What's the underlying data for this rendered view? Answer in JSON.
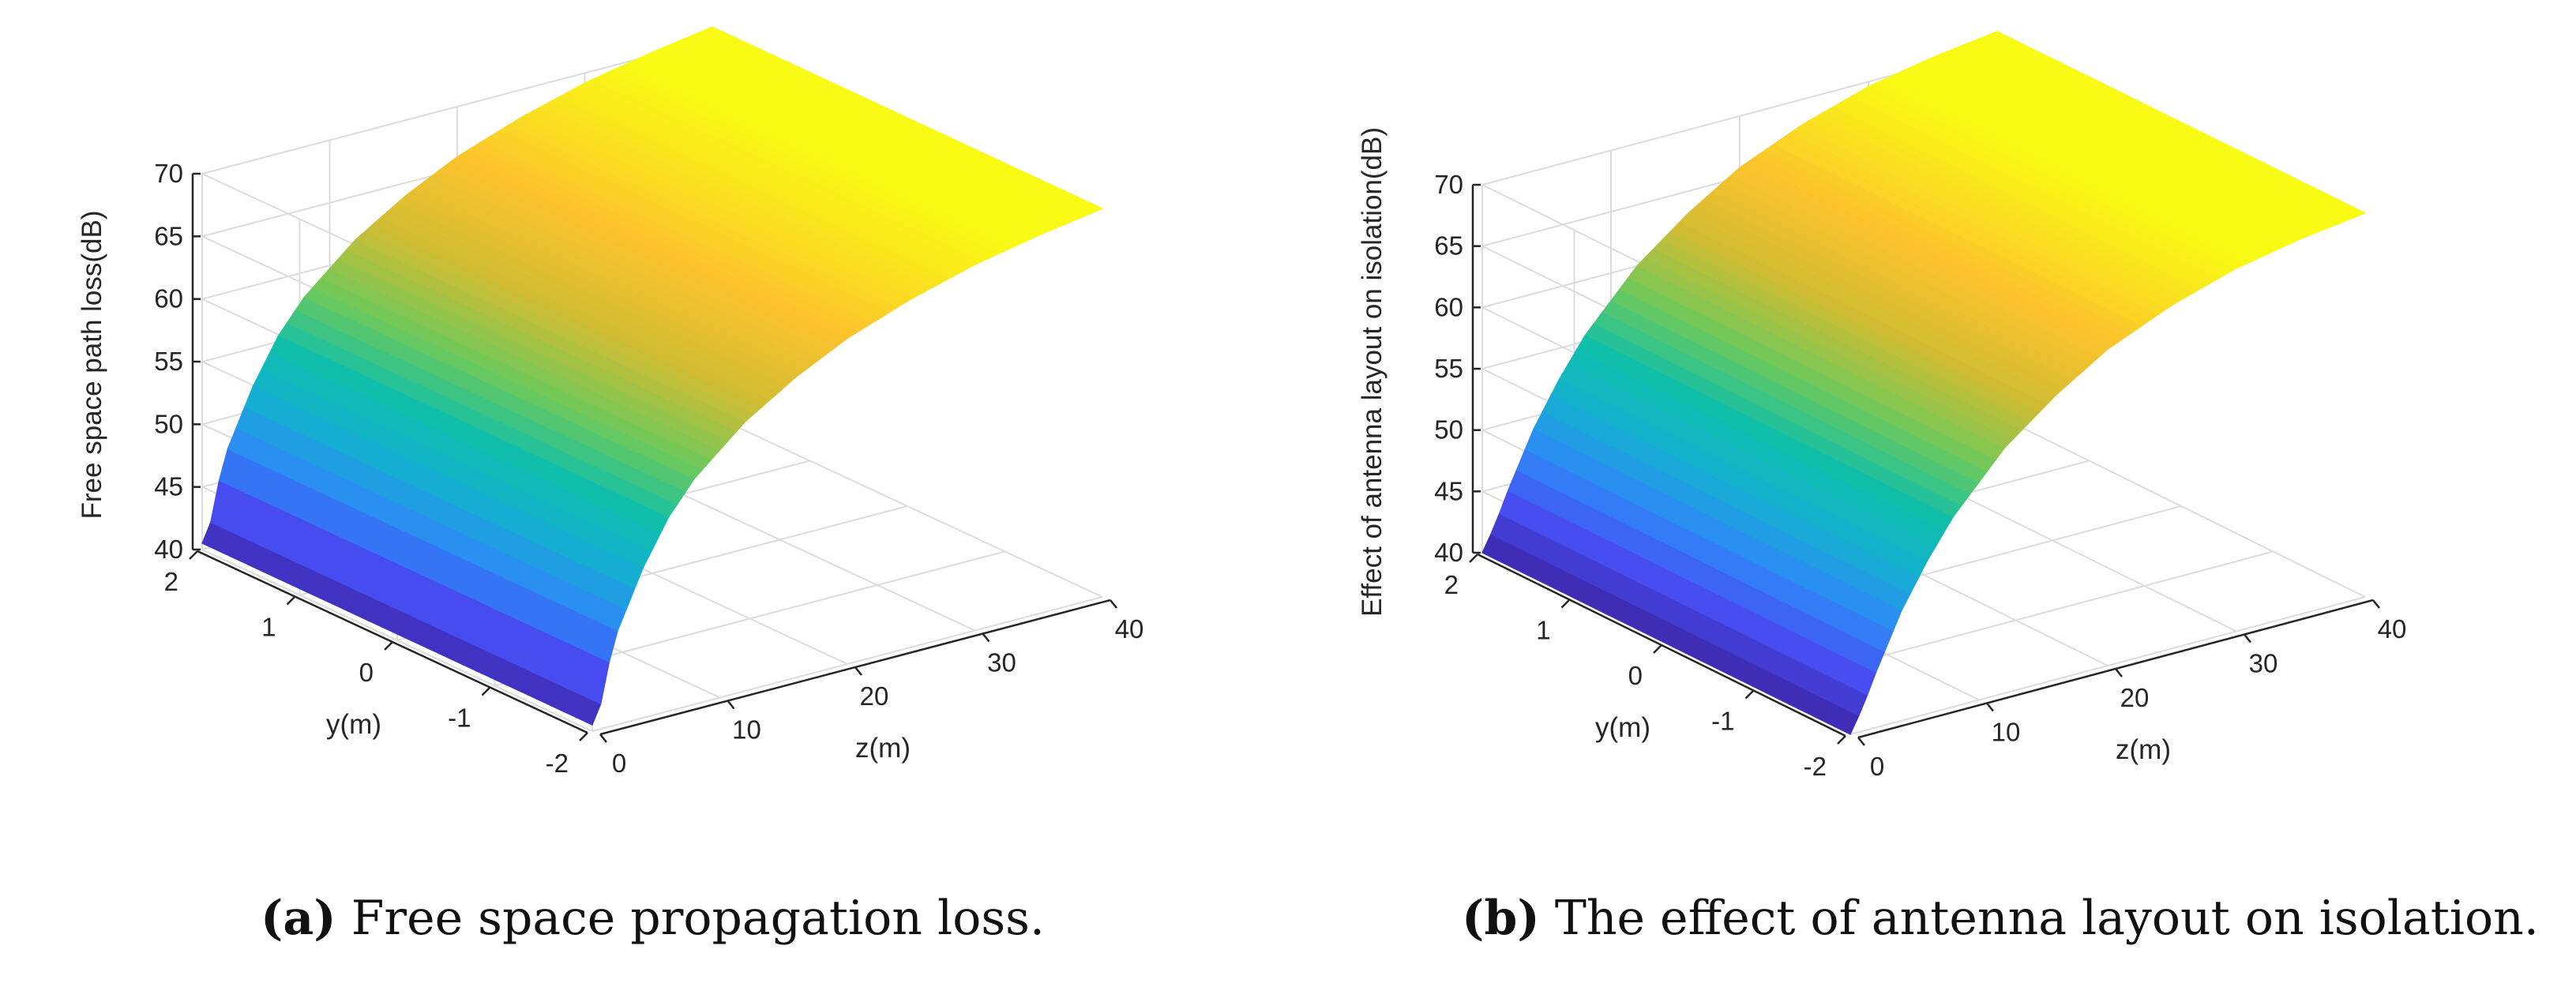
{
  "chart_data": [
    {
      "type": "surface",
      "panel": "a",
      "caption_letter": "a",
      "caption_text": "Free space propagation loss.",
      "zlabel": "Free space path loss(dB)",
      "xlabel": "z(m)",
      "ylabel": "y(m)",
      "zlim": [
        40,
        70
      ],
      "xlim": [
        0,
        40
      ],
      "ylim": [
        -2,
        2
      ],
      "zticks": [
        "40",
        "45",
        "50",
        "55",
        "60",
        "65",
        "70"
      ],
      "xticks": [
        "0",
        "10",
        "20",
        "30",
        "40"
      ],
      "yticks": [
        "2",
        "1",
        "0",
        "-1",
        "-2"
      ],
      "grid": true,
      "colormap": "parula",
      "surface_profile_z_m": [
        0,
        0.5,
        1,
        2,
        4,
        6,
        8,
        12,
        16,
        20,
        25,
        30,
        35,
        40
      ],
      "surface_profile_loss_db": [
        40.5,
        41,
        44,
        47.5,
        52,
        55.5,
        58,
        61.5,
        64,
        66,
        67.8,
        69.2,
        70.2,
        71
      ]
    },
    {
      "type": "surface",
      "panel": "b",
      "caption_letter": "b",
      "caption_text": "The effect of antenna layout on isolation.",
      "zlabel": "Effect of antenna layout on isolation(dB)",
      "xlabel": "z(m)",
      "ylabel": "y(m)",
      "zlim": [
        40,
        70
      ],
      "xlim": [
        0,
        40
      ],
      "ylim": [
        -2,
        2
      ],
      "zticks": [
        "40",
        "45",
        "50",
        "55",
        "60",
        "65",
        "70"
      ],
      "xticks": [
        "0",
        "10",
        "20",
        "30",
        "40"
      ],
      "yticks": [
        "2",
        "1",
        "0",
        "-1",
        "-2"
      ],
      "grid": true,
      "colormap": "parula",
      "surface_profile_z_m": [
        0,
        1,
        2,
        4,
        6,
        8,
        12,
        16,
        20,
        25,
        30,
        35,
        40
      ],
      "surface_profile_loss_db": [
        40,
        42,
        44.5,
        49,
        52.5,
        55.5,
        60,
        63.2,
        65.8,
        68,
        69.6,
        70.6,
        71.3
      ]
    }
  ]
}
